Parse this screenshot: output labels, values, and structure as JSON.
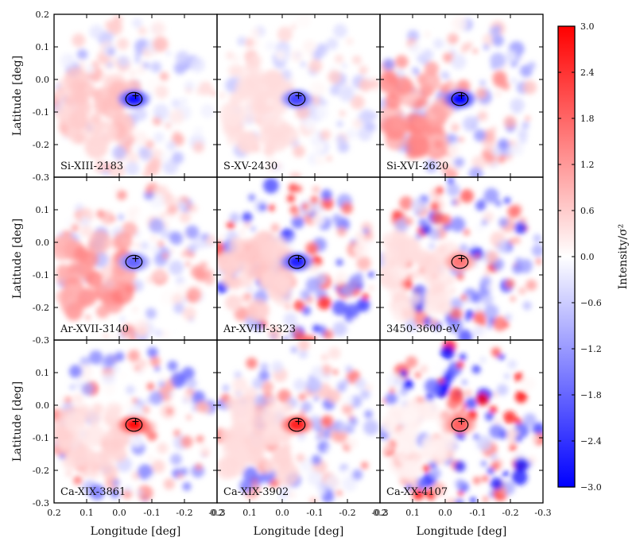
{
  "chart_data": {
    "type": "heatmap",
    "xlabel": "Longitude [deg]",
    "ylabel": "Latitude [deg]",
    "colorbar_label": "Intensity/σ²",
    "xlim": [
      0.2,
      -0.3
    ],
    "ylim": [
      -0.3,
      0.2
    ],
    "xticks": [
      0.2,
      0.1,
      0.0,
      -0.1,
      -0.2,
      -0.3
    ],
    "xtick_labels": [
      "0.2",
      "0.1",
      "0.0",
      "-0.1",
      "-0.2",
      "-0.3"
    ],
    "yticks": [
      0.2,
      0.1,
      0.0,
      -0.1,
      -0.2,
      -0.3
    ],
    "ytick_labels": [
      "0.2",
      "0.1",
      "0.0",
      "-0.1",
      "-0.2",
      "-0.3"
    ],
    "clim": [
      -3.0,
      3.0
    ],
    "colorbar_ticks": [
      3.0,
      2.4,
      1.8,
      1.2,
      0.6,
      0.0,
      -0.6,
      -1.2,
      -1.8,
      -2.4,
      -3.0
    ],
    "colorbar_tick_labels": [
      "3.0",
      "2.4",
      "1.8",
      "1.2",
      "0.6",
      "0.0",
      "−0.6",
      "−1.2",
      "−1.8",
      "−2.4",
      "−3.0"
    ],
    "colormap": [
      "#0000ff",
      "#ffffff",
      "#ff0000"
    ],
    "panels": [
      {
        "label": "Si-XIII-2183",
        "center_value": -2.8,
        "west_value": 0.7,
        "noise": 0.35
      },
      {
        "label": "S-XV-2430",
        "center_value": -2.2,
        "west_value": 0.4,
        "noise": 0.25
      },
      {
        "label": "Si-XVI-2620",
        "center_value": -3.0,
        "west_value": 1.3,
        "noise": 0.45
      },
      {
        "label": "Ar-XVII-3140",
        "center_value": -1.8,
        "west_value": 1.4,
        "noise": 0.45
      },
      {
        "label": "Ar-XVIII-3323",
        "center_value": -2.6,
        "west_value": 0.6,
        "noise": 0.9
      },
      {
        "label": "3450-3600-eV",
        "center_value": 1.6,
        "west_value": 0.4,
        "noise": 0.8
      },
      {
        "label": "Ca-XIX-3861",
        "center_value": 2.8,
        "west_value": 0.5,
        "noise": 0.6
      },
      {
        "label": "Ca-XIX-3902",
        "center_value": 2.6,
        "west_value": 0.5,
        "noise": 0.6
      },
      {
        "label": "Ca-XX-4107",
        "center_value": 1.9,
        "west_value": 0.2,
        "noise": 1.2
      }
    ],
    "source_marker": {
      "lon": -0.05,
      "lat": -0.05,
      "symbol": "+"
    },
    "ellipse": {
      "lon": -0.045,
      "lat": -0.06,
      "semi_lon": 0.025,
      "semi_lat": 0.02
    },
    "field_radius_deg": 0.25
  }
}
